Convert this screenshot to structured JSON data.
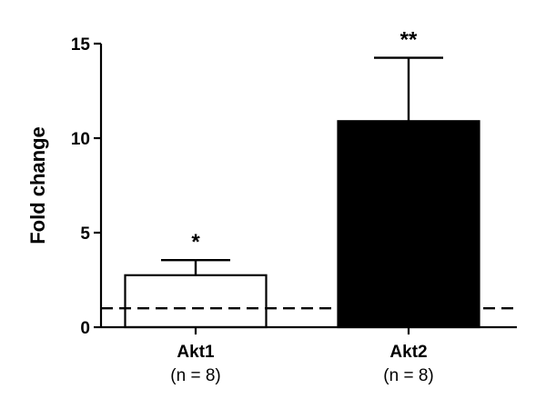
{
  "chart_data": {
    "type": "bar",
    "title": "",
    "xlabel": "",
    "ylabel": "Fold change",
    "ylim": [
      0,
      15
    ],
    "y_ticks": [
      0,
      5,
      10,
      15
    ],
    "grid": false,
    "legend": "none",
    "reference_line": {
      "y": 1,
      "style": "dashed"
    },
    "categories": [
      "Akt1",
      "Akt2"
    ],
    "category_sublabels": [
      "(n = 8)",
      "(n = 8)"
    ],
    "values": [
      2.75,
      10.9
    ],
    "error_upper": [
      3.55,
      14.25
    ],
    "significance": [
      "*",
      "**"
    ],
    "bar_fill_colors": [
      "#ffffff",
      "#000000"
    ],
    "bar_stroke_colors": [
      "#000000",
      "#000000"
    ]
  }
}
